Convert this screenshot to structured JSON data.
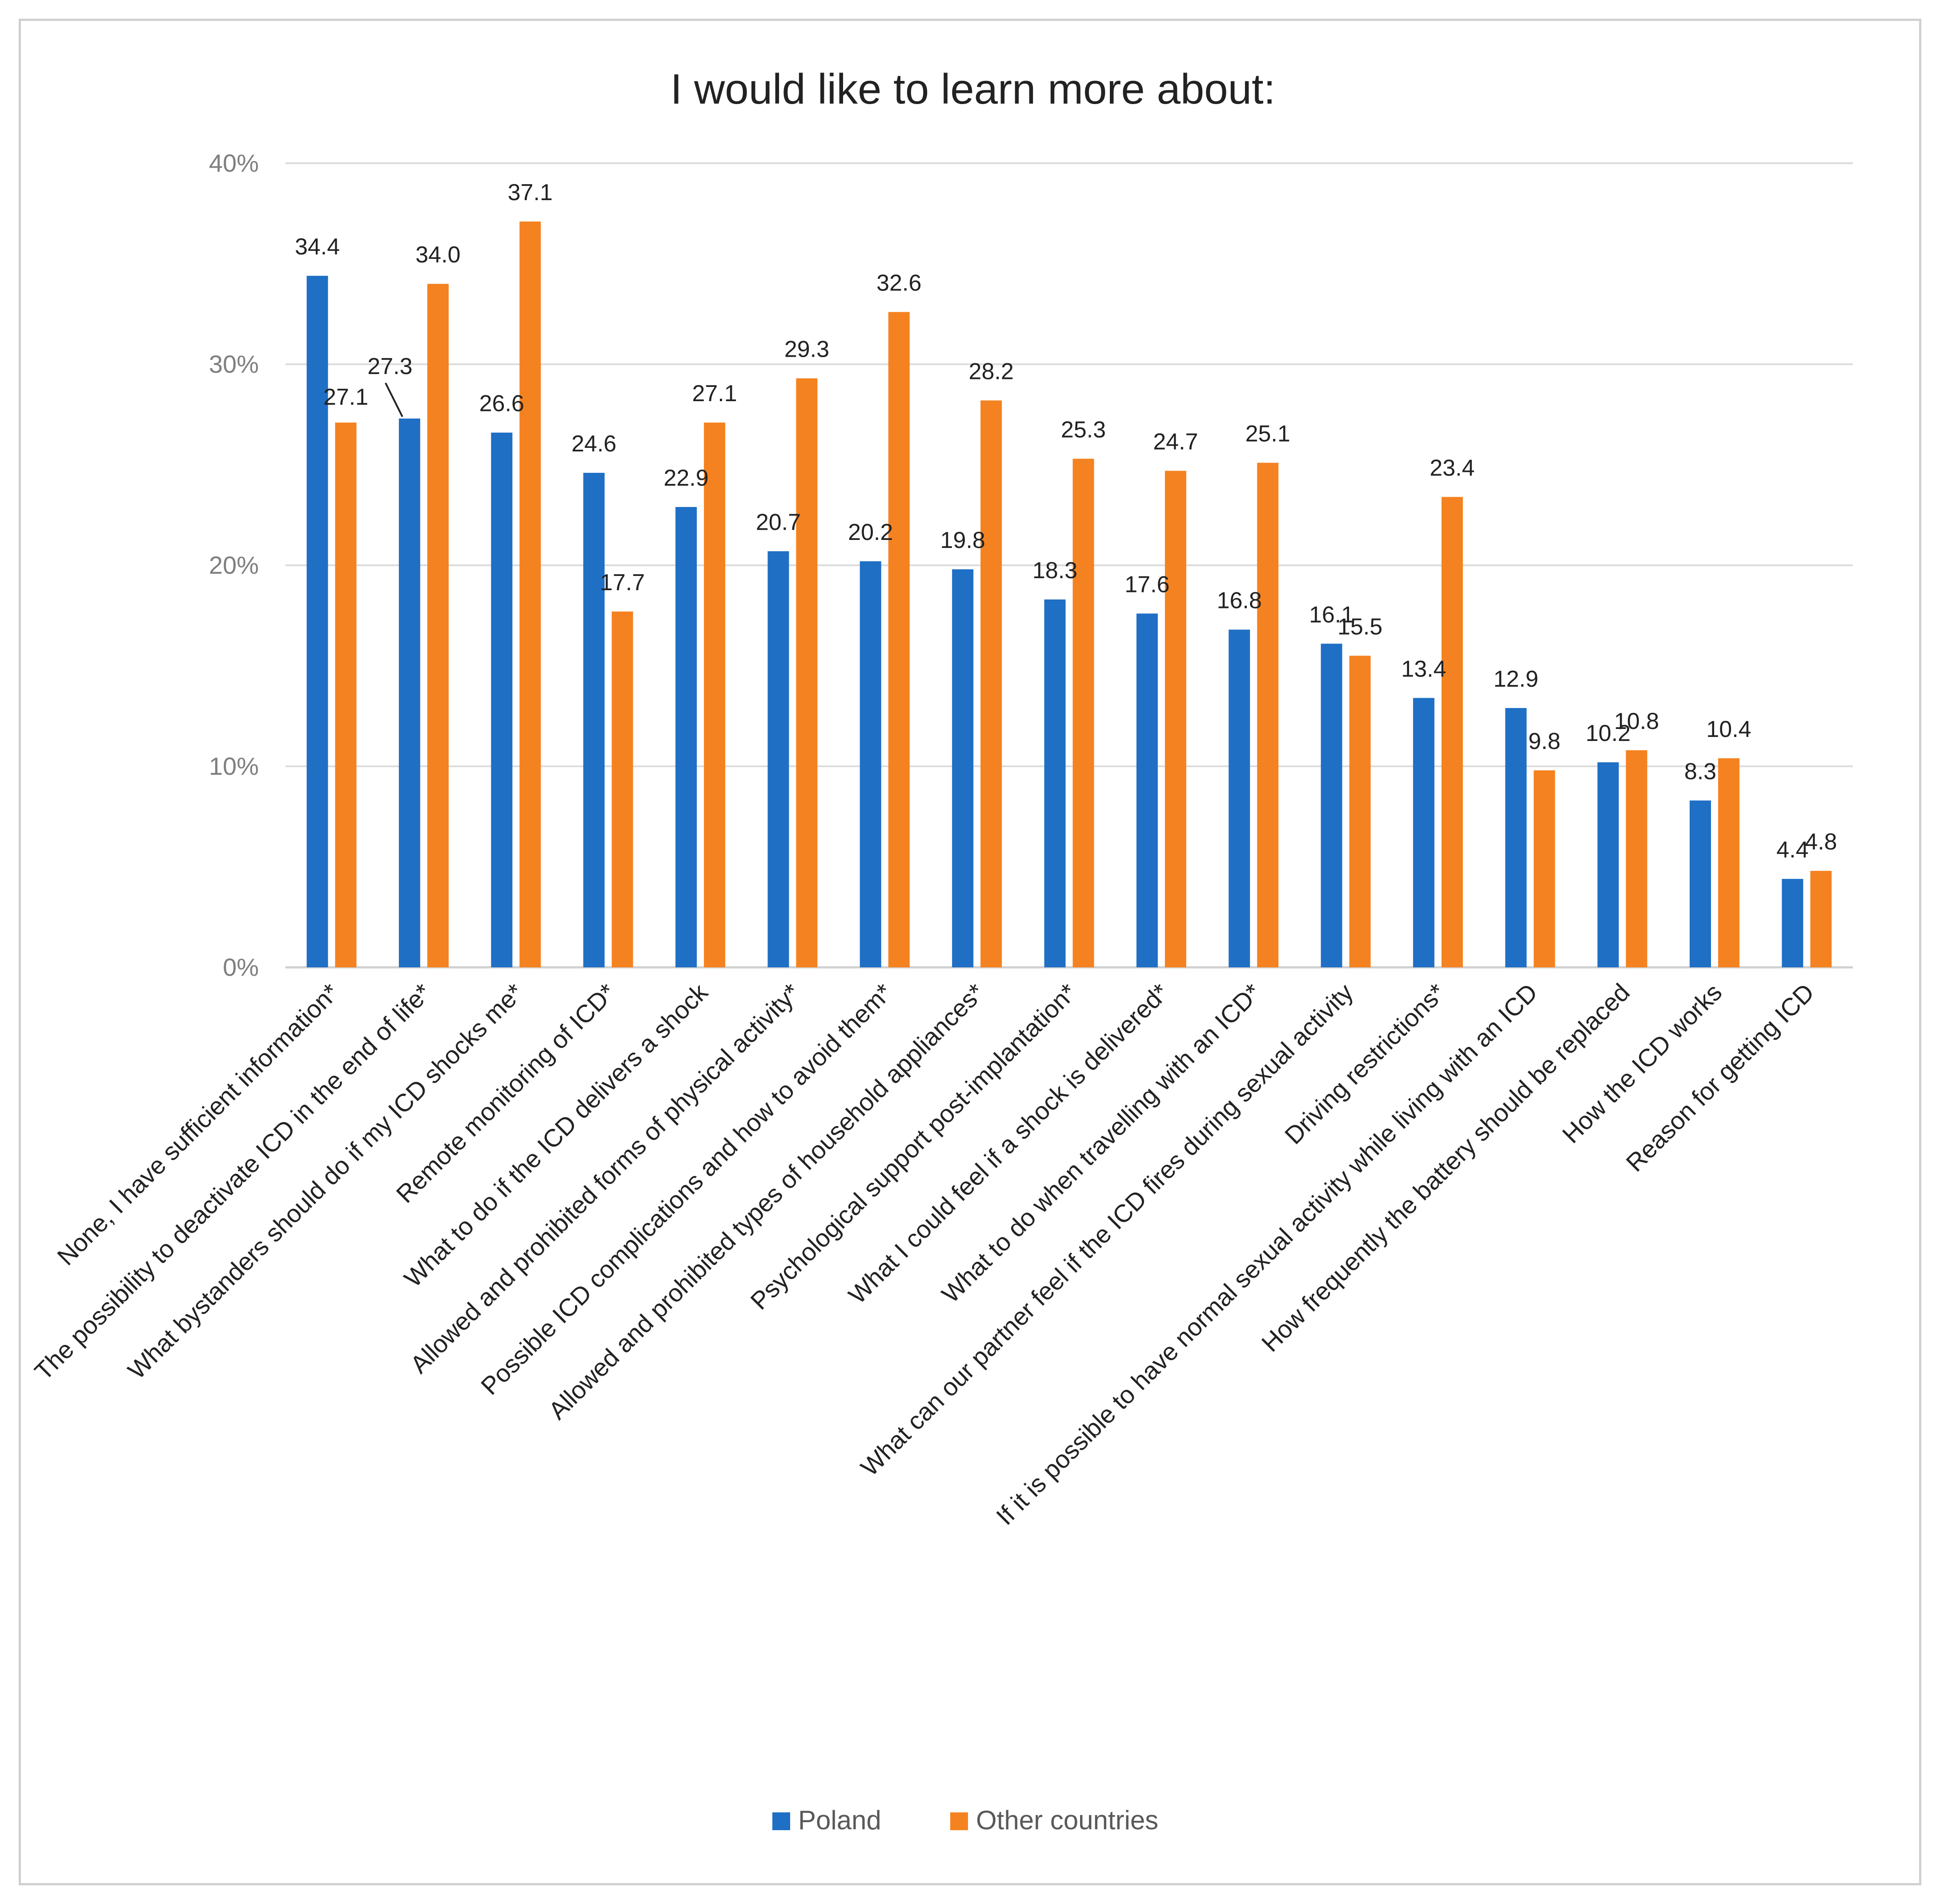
{
  "chart_data": {
    "type": "bar",
    "title": "I would like to learn more about:",
    "xlabel": "",
    "ylabel": "",
    "ylim": [
      0,
      40
    ],
    "yticks": [
      "0%",
      "10%",
      "20%",
      "30%",
      "40%"
    ],
    "grid": true,
    "legend_position": "bottom-center",
    "categories": [
      "None, I have sufficient information*",
      "The possibility to deactivate ICD in the end of life*",
      "What bystanders should do if my ICD shocks me*",
      "Remote monitoring of ICD*",
      "What to do if the ICD delivers a shock",
      "Allowed and prohibited forms of physical activity*",
      "Possible ICD complications and how to avoid them*",
      "Allowed and prohibited types of household appliances*",
      "Psychological support post-implantation*",
      "What I could feel if a shock is delivered*",
      "What to do when travelling with an ICD*",
      "What can our partner feel if the ICD fires during sexual activity",
      "Driving restrictions*",
      "If it is possible to have normal sexual activity while living with an ICD",
      "How frequently the battery should be replaced",
      "How the ICD works",
      "Reason for getting ICD"
    ],
    "series": [
      {
        "name": "Poland",
        "color": "#1f6fc5",
        "values": [
          34.4,
          27.3,
          26.6,
          24.6,
          22.9,
          20.7,
          20.2,
          19.8,
          18.3,
          17.6,
          16.8,
          16.1,
          13.4,
          12.9,
          10.2,
          8.3,
          4.4
        ],
        "labels": [
          "34.4",
          "27.3",
          "26.6",
          "24.6",
          "22.9",
          "20.7",
          "20.2",
          "19.8",
          "18.3",
          "17.6",
          "16.8",
          "16.1",
          "13.4",
          "12.9",
          "10.2",
          "8.3",
          "4.4"
        ]
      },
      {
        "name": "Other countries",
        "color": "#f58220",
        "values": [
          27.1,
          34.0,
          37.1,
          17.7,
          27.1,
          29.3,
          32.6,
          28.2,
          25.3,
          24.7,
          25.1,
          15.5,
          23.4,
          9.8,
          10.8,
          10.4,
          4.8
        ],
        "labels": [
          "27.1",
          "34.0",
          "37.1",
          "17.7",
          "27.1",
          "29.3",
          "32.6",
          "28.2",
          "25.3",
          "24.7",
          "25.1",
          "15.5",
          "23.4",
          "9.8",
          "10.8",
          "10.4",
          "4.8"
        ]
      }
    ]
  }
}
